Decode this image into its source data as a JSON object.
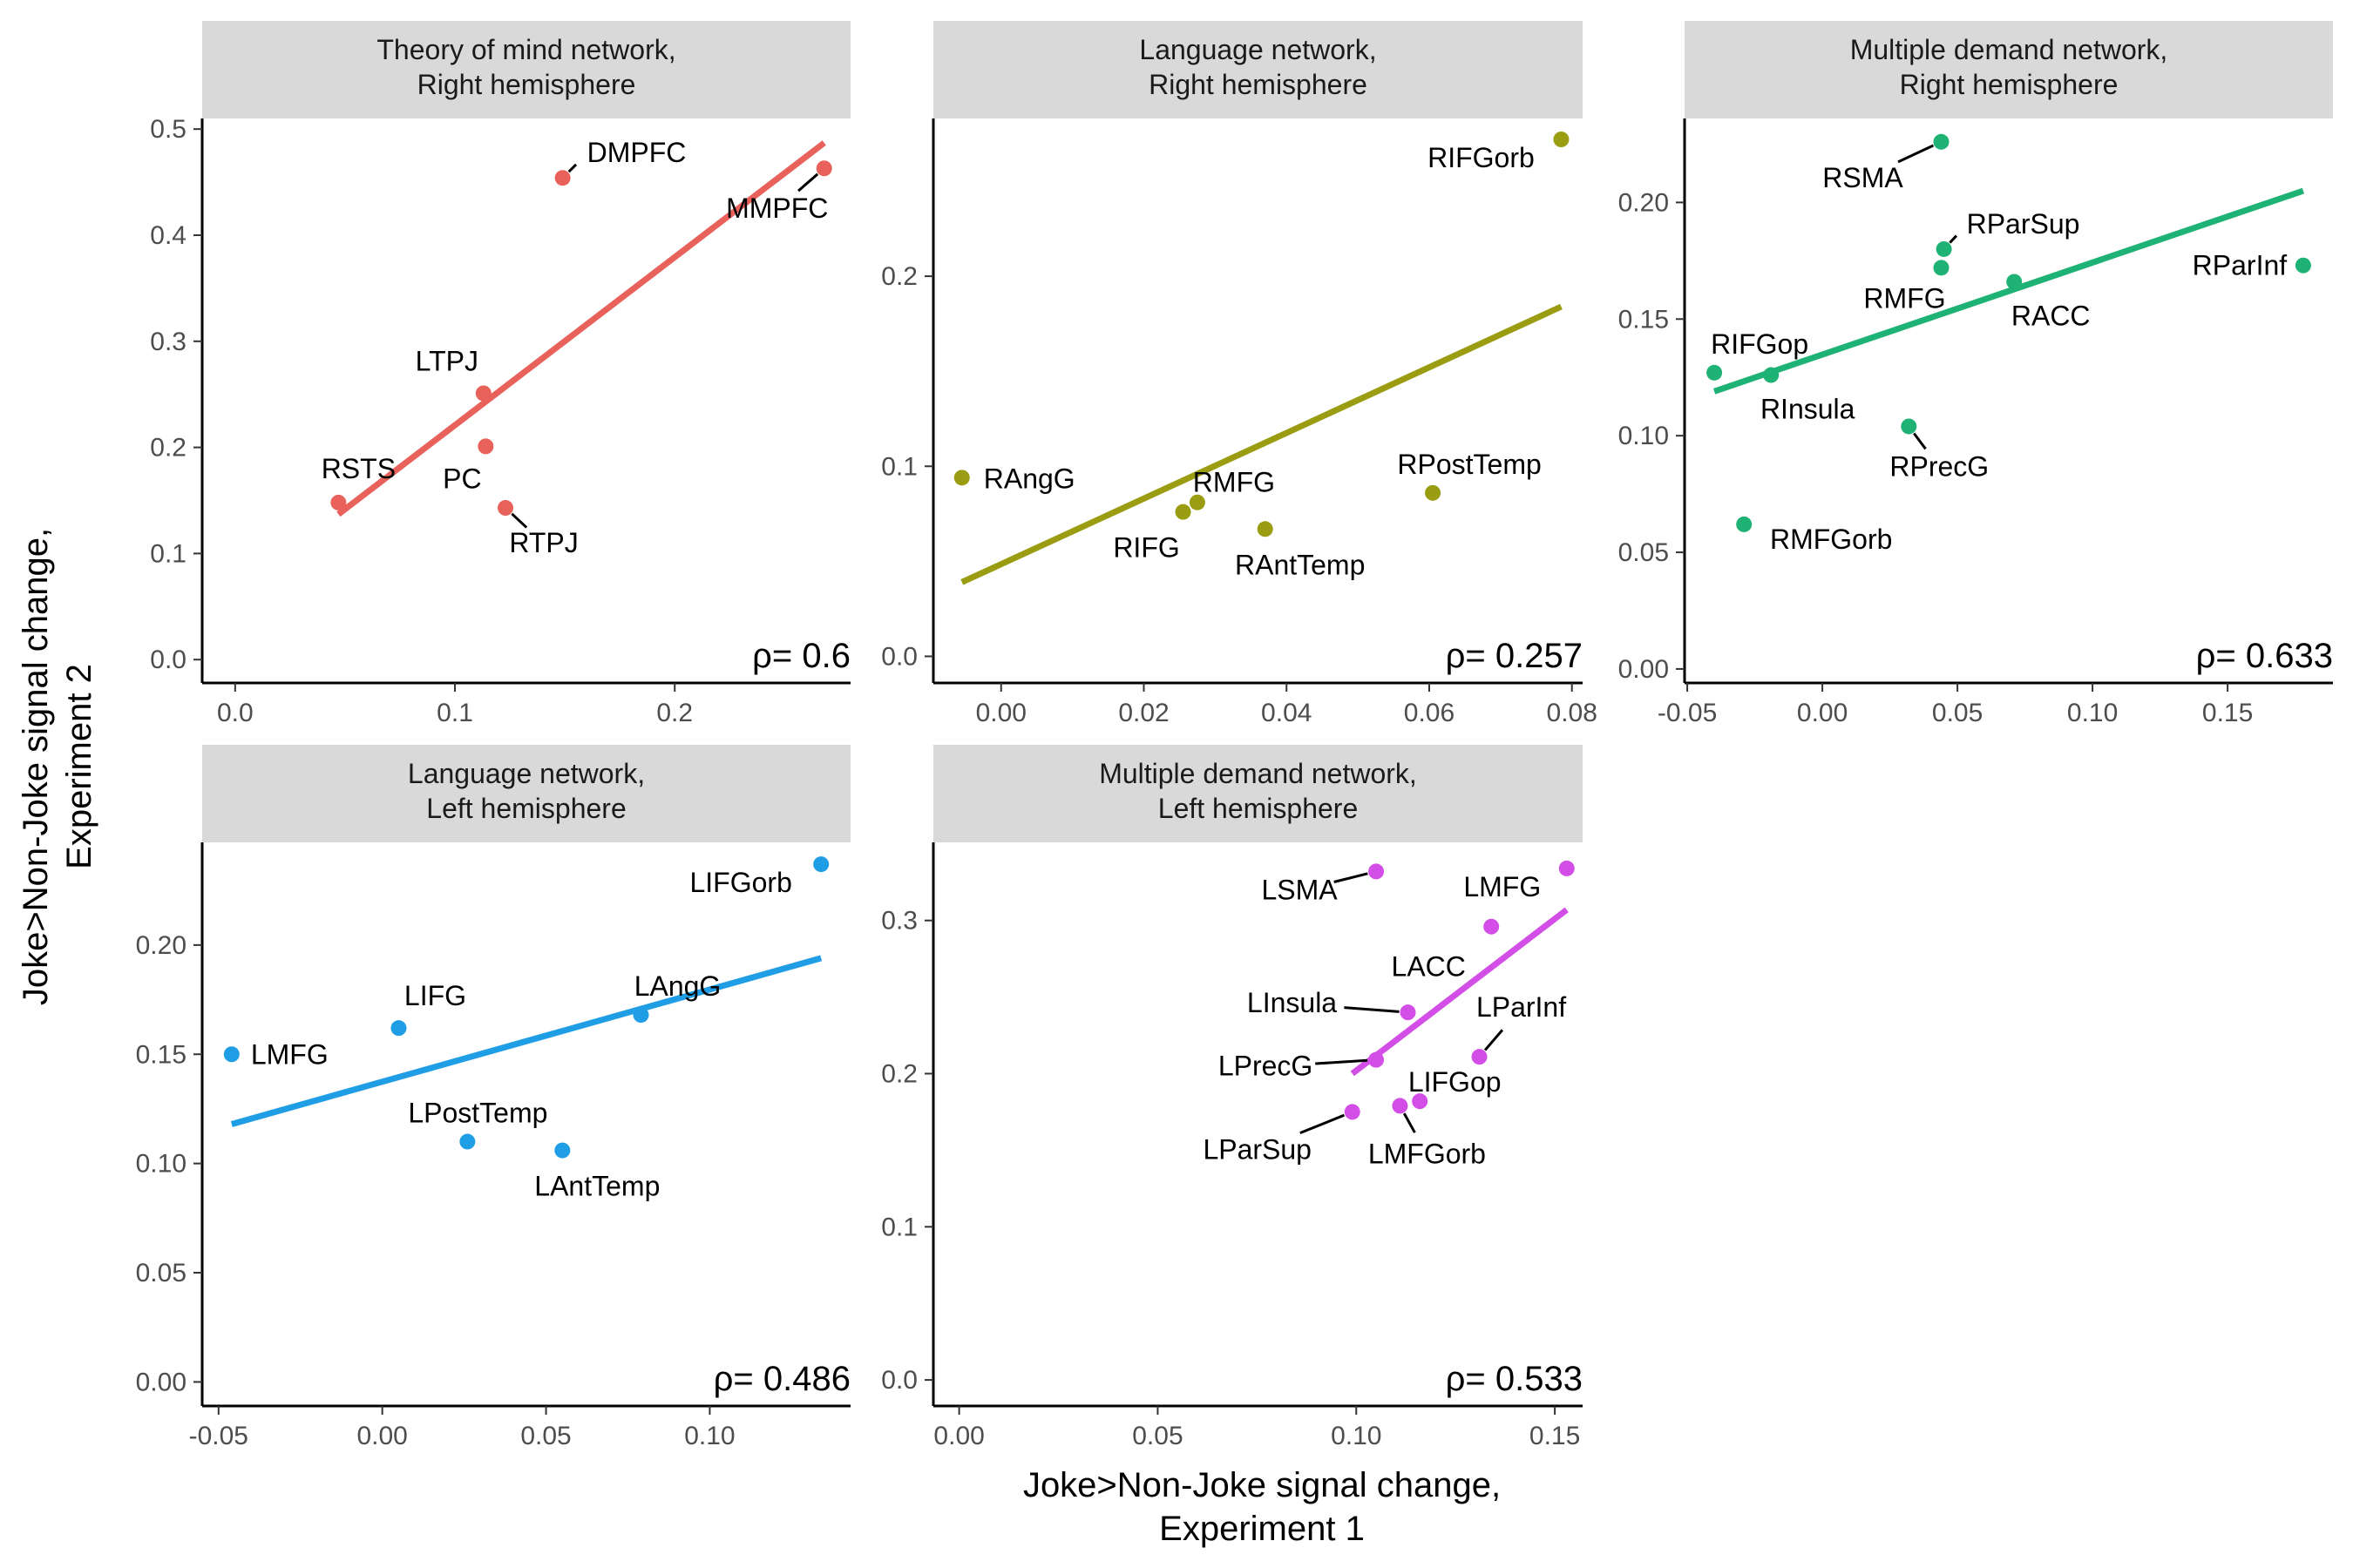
{
  "figure": {
    "xlabel": [
      "Joke>Non-Joke signal change,",
      "Experiment 1"
    ],
    "ylabel": [
      "Joke>Non-Joke signal change,",
      "Experiment 2"
    ]
  },
  "chart_data": [
    {
      "type": "scatter",
      "title": [
        "Theory of mind network,",
        "Right hemisphere"
      ],
      "color": "#e8615a",
      "xlim": [
        -0.015,
        0.28
      ],
      "ylim": [
        -0.022,
        0.51
      ],
      "xticks": [
        0.0,
        0.1,
        0.2
      ],
      "xticklabels": [
        "0.0",
        "0.1",
        "0.2"
      ],
      "yticks": [
        0.0,
        0.1,
        0.2,
        0.3,
        0.4,
        0.5
      ],
      "yticklabels": [
        "0.0",
        "0.1",
        "0.2",
        "0.3",
        "0.4",
        "0.5"
      ],
      "points": [
        {
          "label": "DMPFC",
          "x": 0.149,
          "y": 0.454
        },
        {
          "label": "MMPFC",
          "x": 0.268,
          "y": 0.463
        },
        {
          "label": "LTPJ",
          "x": 0.113,
          "y": 0.251
        },
        {
          "label": "PC",
          "x": 0.114,
          "y": 0.201
        },
        {
          "label": "RSTS",
          "x": 0.047,
          "y": 0.148
        },
        {
          "label": "RTPJ",
          "x": 0.123,
          "y": 0.143
        }
      ],
      "fit": {
        "x": [
          0.047,
          0.268
        ],
        "y": [
          0.137,
          0.487
        ]
      },
      "rho": "ρ= 0.6"
    },
    {
      "type": "scatter",
      "title": [
        "Language network,",
        "Right hemisphere"
      ],
      "color": "#9a9c12",
      "xlim": [
        -0.0095,
        0.0815
      ],
      "ylim": [
        -0.014,
        0.283
      ],
      "xticks": [
        0.0,
        0.02,
        0.04,
        0.06,
        0.08
      ],
      "xticklabels": [
        "0.00",
        "0.02",
        "0.04",
        "0.06",
        "0.08"
      ],
      "yticks": [
        0.0,
        0.1,
        0.2
      ],
      "yticklabels": [
        "0.0",
        "0.1",
        "0.2"
      ],
      "points": [
        {
          "label": "RIFGorb",
          "x": 0.0785,
          "y": 0.272
        },
        {
          "label": "RPostTemp",
          "x": 0.0605,
          "y": 0.086
        },
        {
          "label": "RMFG",
          "x": 0.0275,
          "y": 0.081
        },
        {
          "label": "RIFG",
          "x": 0.0255,
          "y": 0.076
        },
        {
          "label": "RAntTemp",
          "x": 0.037,
          "y": 0.067
        },
        {
          "label": "RAngG",
          "x": -0.0055,
          "y": 0.094
        }
      ],
      "fit": {
        "x": [
          -0.0055,
          0.0785
        ],
        "y": [
          0.039,
          0.184
        ]
      },
      "rho": "ρ= 0.257"
    },
    {
      "type": "scatter",
      "title": [
        "Multiple demand network,",
        "Right hemisphere"
      ],
      "color": "#1eb374",
      "xlim": [
        -0.051,
        0.189
      ],
      "ylim": [
        -0.006,
        0.236
      ],
      "xticks": [
        -0.05,
        0.0,
        0.05,
        0.1,
        0.15
      ],
      "xticklabels": [
        "-0.05",
        "0.00",
        "0.05",
        "0.10",
        "0.15"
      ],
      "yticks": [
        0.0,
        0.05,
        0.1,
        0.15,
        0.2
      ],
      "yticklabels": [
        "0.00",
        "0.05",
        "0.10",
        "0.15",
        "0.20"
      ],
      "points": [
        {
          "label": "RSMA",
          "x": 0.044,
          "y": 0.226
        },
        {
          "label": "RParSup",
          "x": 0.045,
          "y": 0.18
        },
        {
          "label": "RMFG",
          "x": 0.044,
          "y": 0.172
        },
        {
          "label": "RACC",
          "x": 0.071,
          "y": 0.166
        },
        {
          "label": "RParInf",
          "x": 0.178,
          "y": 0.173
        },
        {
          "label": "RIFGop",
          "x": -0.04,
          "y": 0.127
        },
        {
          "label": "RInsula",
          "x": -0.019,
          "y": 0.126
        },
        {
          "label": "RPrecG",
          "x": 0.032,
          "y": 0.104
        },
        {
          "label": "RMFGorb",
          "x": -0.029,
          "y": 0.062
        }
      ],
      "fit": {
        "x": [
          -0.04,
          0.178
        ],
        "y": [
          0.119,
          0.205
        ]
      },
      "rho": "ρ= 0.633"
    },
    {
      "type": "scatter",
      "title": [
        "Language network,",
        "Left hemisphere"
      ],
      "color": "#1f9ee6",
      "xlim": [
        -0.055,
        0.143
      ],
      "ylim": [
        -0.011,
        0.247
      ],
      "xticks": [
        -0.05,
        0.0,
        0.05,
        0.1
      ],
      "xticklabels": [
        "-0.05",
        "0.00",
        "0.05",
        "0.10"
      ],
      "yticks": [
        0.0,
        0.05,
        0.1,
        0.15,
        0.2
      ],
      "yticklabels": [
        "0.00",
        "0.05",
        "0.10",
        "0.15",
        "0.20"
      ],
      "points": [
        {
          "label": "LIFGorb",
          "x": 0.134,
          "y": 0.237
        },
        {
          "label": "LAngG",
          "x": 0.079,
          "y": 0.168
        },
        {
          "label": "LIFG",
          "x": 0.005,
          "y": 0.162
        },
        {
          "label": "LMFG",
          "x": -0.046,
          "y": 0.15
        },
        {
          "label": "LPostTemp",
          "x": 0.026,
          "y": 0.11
        },
        {
          "label": "LAntTemp",
          "x": 0.055,
          "y": 0.106
        }
      ],
      "fit": {
        "x": [
          -0.046,
          0.134
        ],
        "y": [
          0.118,
          0.194
        ]
      },
      "rho": "ρ= 0.486"
    },
    {
      "type": "scatter",
      "title": [
        "Multiple demand network,",
        "Left hemisphere"
      ],
      "color": "#d24ee6",
      "xlim": [
        -0.0065,
        0.157
      ],
      "ylim": [
        -0.017,
        0.351
      ],
      "xticks": [
        0.0,
        0.05,
        0.1,
        0.15
      ],
      "xticklabels": [
        "0.00",
        "0.05",
        "0.10",
        "0.15"
      ],
      "yticks": [
        0.0,
        0.1,
        0.2,
        0.3
      ],
      "yticklabels": [
        "0.0",
        "0.1",
        "0.2",
        "0.3"
      ],
      "points": [
        {
          "label": "LSMA",
          "x": 0.105,
          "y": 0.332
        },
        {
          "label": "LMFG",
          "x": 0.153,
          "y": 0.334
        },
        {
          "label": "LACC",
          "x": 0.134,
          "y": 0.296
        },
        {
          "label": "LInsula",
          "x": 0.113,
          "y": 0.24
        },
        {
          "label": "LParInf",
          "x": 0.131,
          "y": 0.211
        },
        {
          "label": "LPrecG",
          "x": 0.105,
          "y": 0.209
        },
        {
          "label": "LIFGop",
          "x": 0.116,
          "y": 0.182
        },
        {
          "label": "LMFGorb",
          "x": 0.111,
          "y": 0.179
        },
        {
          "label": "LParSup",
          "x": 0.099,
          "y": 0.175
        }
      ],
      "fit": {
        "x": [
          0.099,
          0.153
        ],
        "y": [
          0.2,
          0.307
        ]
      },
      "rho": "ρ= 0.533"
    }
  ]
}
